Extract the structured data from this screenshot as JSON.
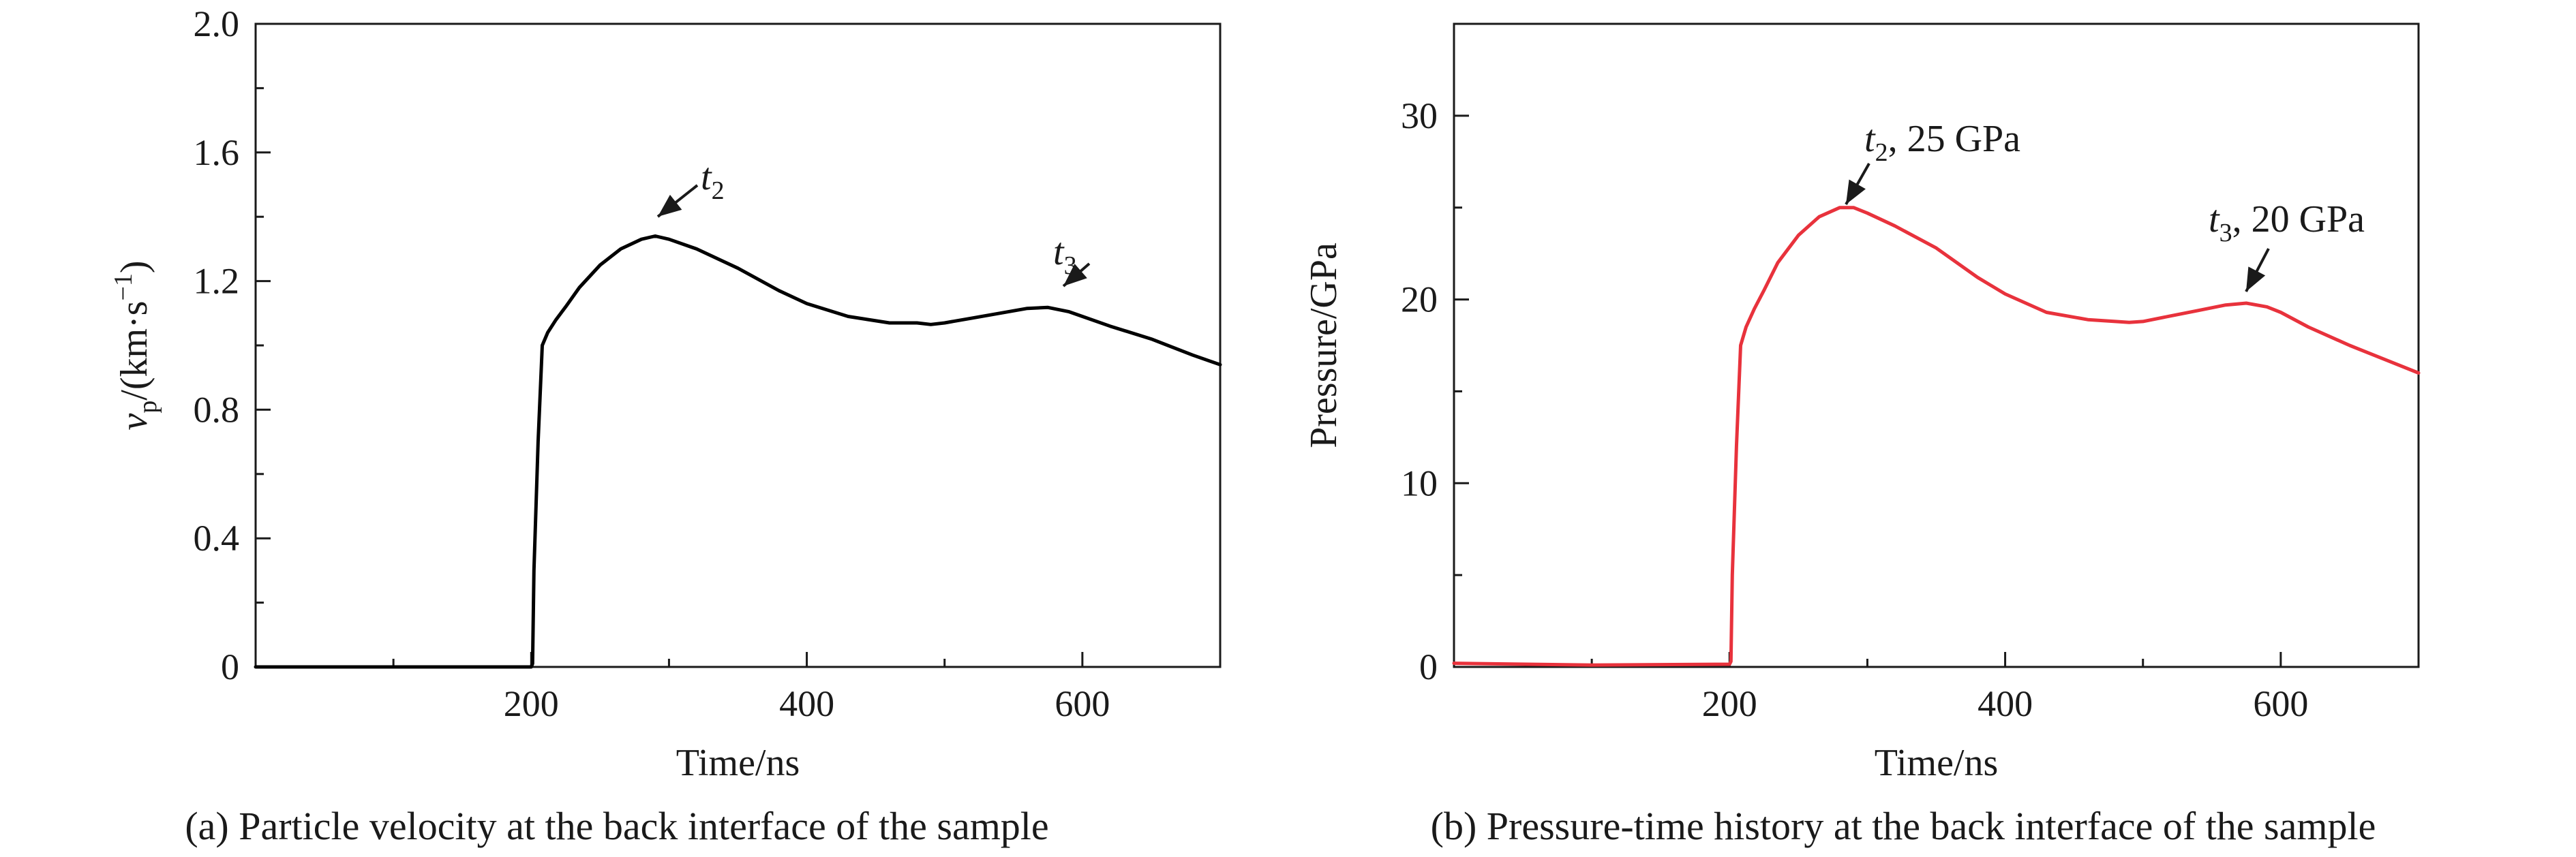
{
  "chart_data": [
    {
      "type": "line",
      "id": "a",
      "caption": "(a) Particle velocity at the back interface of the sample",
      "xlabel": "Time/ns",
      "ylabel": {
        "main": "v",
        "sub": "p",
        "units": "/(km·s",
        "sup": "−1",
        "close": ")"
      },
      "xlim": [
        0,
        700
      ],
      "ylim": [
        0,
        2.0
      ],
      "xticks": [
        200,
        400,
        600
      ],
      "xtick_labels": [
        "200",
        "400",
        "600"
      ],
      "yticks": [
        0,
        0.4,
        0.8,
        1.2,
        1.6,
        2.0
      ],
      "ytick_labels": [
        "0",
        "0.4",
        "0.8",
        "1.2",
        "1.6",
        "2.0"
      ],
      "color": "#000000",
      "series": [
        {
          "name": "particle velocity",
          "x": [
            0,
            100,
            200,
            201,
            202,
            205,
            208,
            212,
            218,
            225,
            235,
            250,
            265,
            280,
            290,
            300,
            320,
            350,
            380,
            400,
            430,
            460,
            480,
            490,
            500,
            520,
            540,
            560,
            575,
            590,
            600,
            620,
            650,
            680,
            700
          ],
          "y": [
            0.0,
            0.0,
            0.0,
            0.01,
            0.3,
            0.7,
            1.0,
            1.04,
            1.08,
            1.12,
            1.18,
            1.25,
            1.3,
            1.33,
            1.34,
            1.33,
            1.3,
            1.24,
            1.17,
            1.13,
            1.09,
            1.07,
            1.07,
            1.065,
            1.07,
            1.085,
            1.1,
            1.115,
            1.118,
            1.105,
            1.09,
            1.06,
            1.02,
            0.97,
            0.94
          ]
        }
      ],
      "annotations": [
        {
          "main": "t",
          "sub": "2",
          "rest": "",
          "x": 295,
          "y": 1.34
        },
        {
          "main": "t",
          "sub": "3",
          "rest": "",
          "x": 585,
          "y": 1.1
        }
      ]
    },
    {
      "type": "line",
      "id": "b",
      "caption": "(b) Pressure-time history at the back interface of the sample",
      "xlabel": "Time/ns",
      "ylabel": {
        "main": "Pressure/GPa"
      },
      "xlim": [
        0,
        700
      ],
      "ylim": [
        0,
        35
      ],
      "xticks": [
        200,
        400,
        600
      ],
      "xtick_labels": [
        "200",
        "400",
        "600"
      ],
      "yticks": [
        0,
        10,
        20,
        30
      ],
      "ytick_labels": [
        "0",
        "10",
        "20",
        "30"
      ],
      "color": "#e8323c",
      "series": [
        {
          "name": "pressure",
          "x": [
            0,
            100,
            200,
            201,
            202,
            205,
            208,
            212,
            218,
            225,
            235,
            250,
            265,
            280,
            290,
            300,
            320,
            350,
            380,
            400,
            430,
            460,
            480,
            490,
            500,
            520,
            540,
            560,
            575,
            590,
            600,
            620,
            650,
            680,
            700
          ],
          "y": [
            0.2,
            0.1,
            0.15,
            0.3,
            5.0,
            12.0,
            17.5,
            18.5,
            19.5,
            20.5,
            22.0,
            23.5,
            24.5,
            25.0,
            25.0,
            24.7,
            24.0,
            22.8,
            21.2,
            20.3,
            19.3,
            18.9,
            18.8,
            18.75,
            18.8,
            19.1,
            19.4,
            19.7,
            19.8,
            19.6,
            19.3,
            18.5,
            17.5,
            16.6,
            16.0
          ]
        }
      ],
      "annotations": [
        {
          "main": "t",
          "sub": "2",
          "rest": ", 25 GPa",
          "x": 292,
          "y": 25.0
        },
        {
          "main": "t",
          "sub": "3",
          "rest": ", 20 GPa",
          "x": 575,
          "y": 19.8
        }
      ]
    }
  ]
}
